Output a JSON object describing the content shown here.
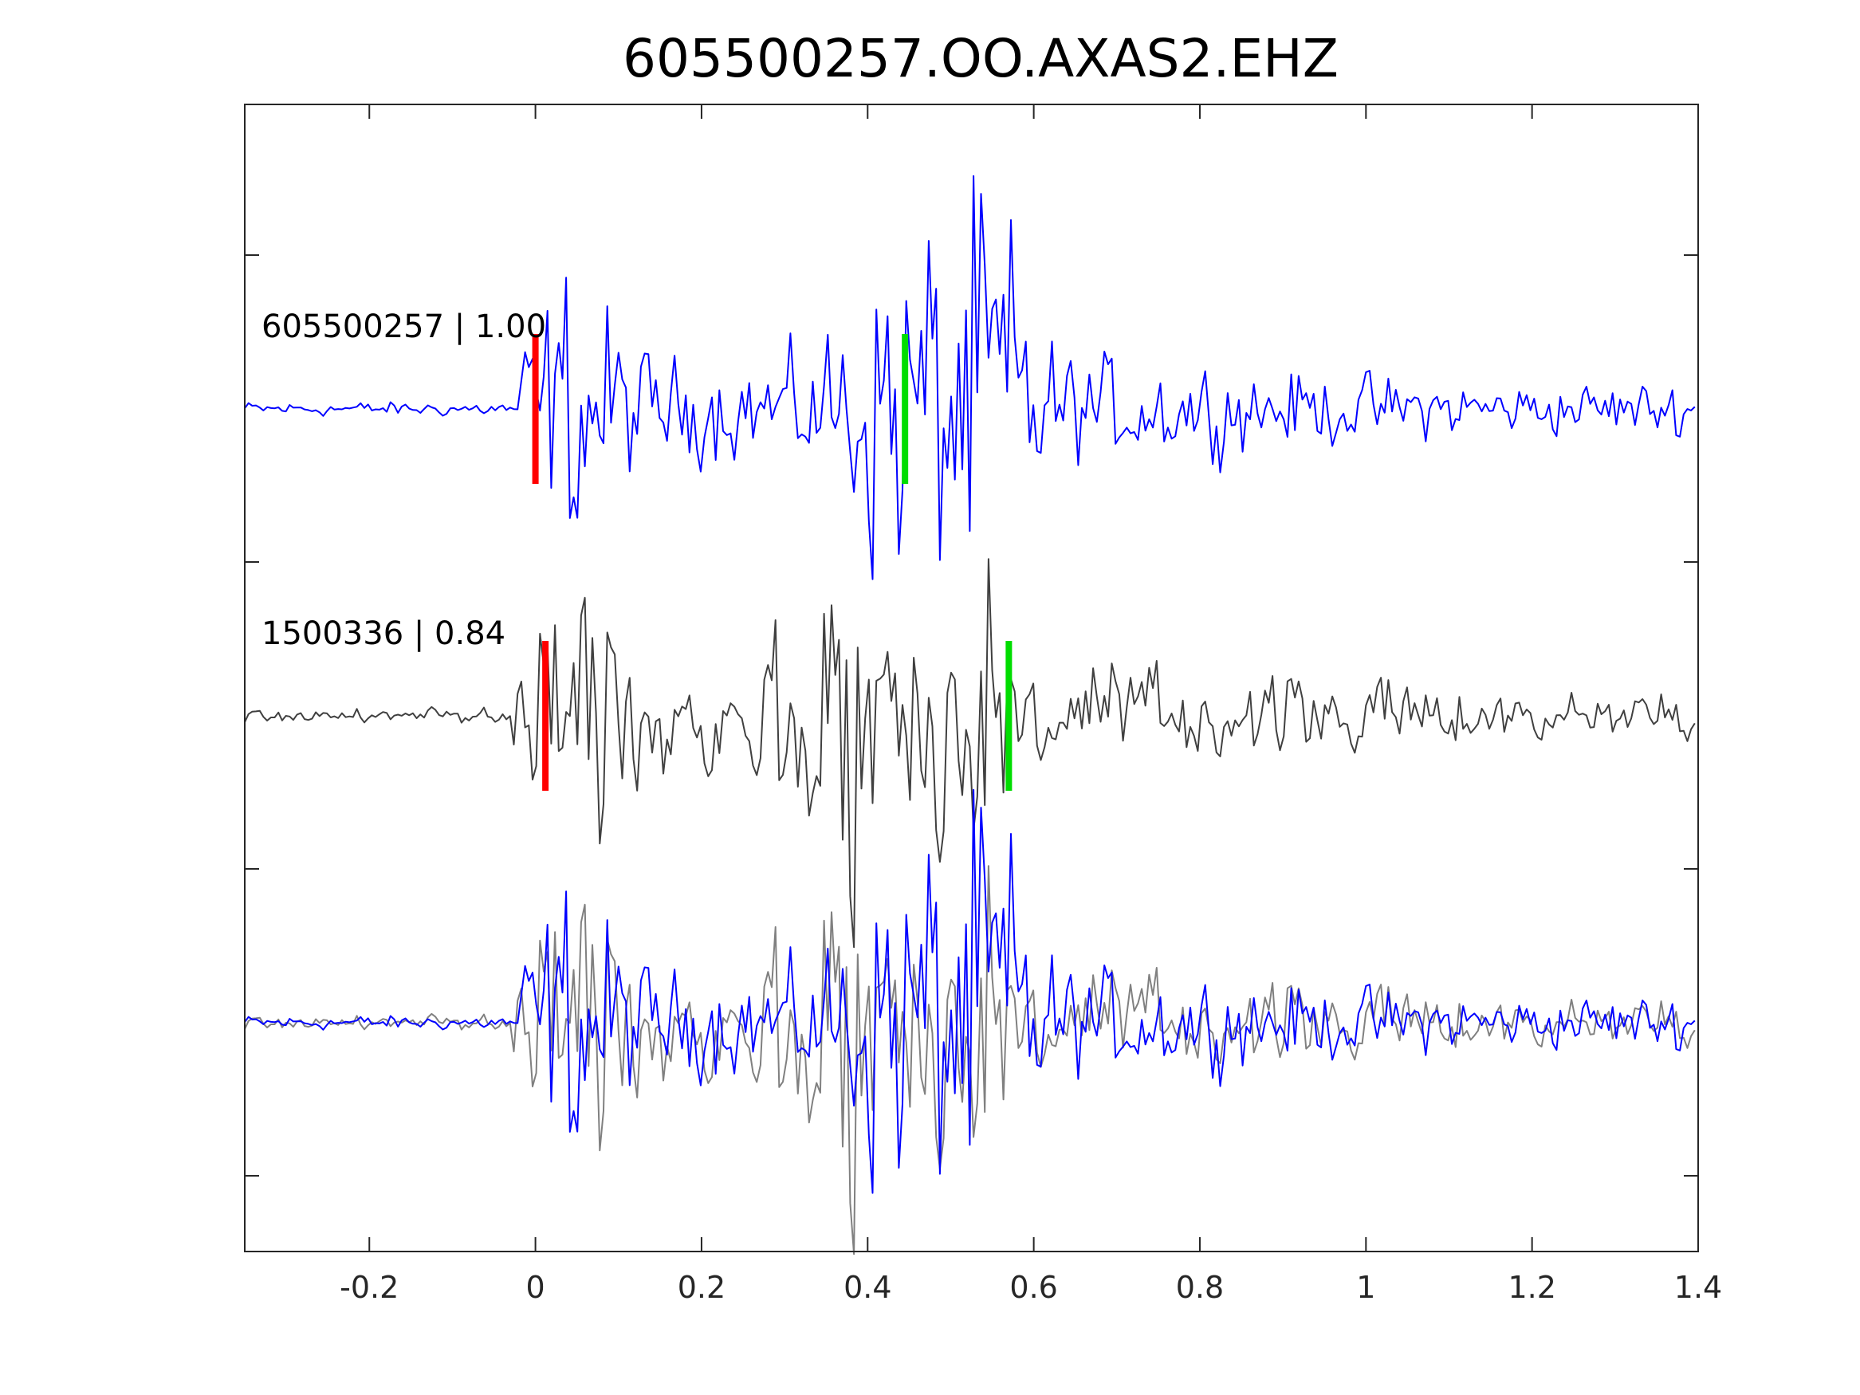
{
  "chart_data": {
    "type": "line",
    "title": "605500257.OO.AXAS2.EHZ",
    "xlabel": "",
    "ylabel": "",
    "xlim": [
      -0.35,
      1.4
    ],
    "x_ticks": [
      -0.2,
      0,
      0.2,
      0.4,
      0.6,
      0.8,
      1,
      1.2,
      1.4
    ],
    "x_tick_labels": [
      "-0.2",
      "0",
      "0.2",
      "0.4",
      "0.6",
      "0.8",
      "1",
      "1.2",
      "1.4"
    ],
    "y_tick_count": 4,
    "grid": false,
    "traces": [
      {
        "label": "605500257 | 1.00",
        "color": "#0000ff",
        "picks": [
          {
            "phase": "P",
            "x": 0.0,
            "color": "#ff0000"
          },
          {
            "phase": "S",
            "x": 0.445,
            "color": "#00dd00"
          }
        ]
      },
      {
        "label": "1500336 | 0.84",
        "color": "#404040",
        "picks": [
          {
            "phase": "P",
            "x": 0.012,
            "color": "#ff0000"
          },
          {
            "phase": "S",
            "x": 0.57,
            "color": "#00dd00"
          }
        ]
      },
      {
        "label": "",
        "overlay": true,
        "colors": [
          "#808080",
          "#0000ff"
        ]
      }
    ]
  }
}
